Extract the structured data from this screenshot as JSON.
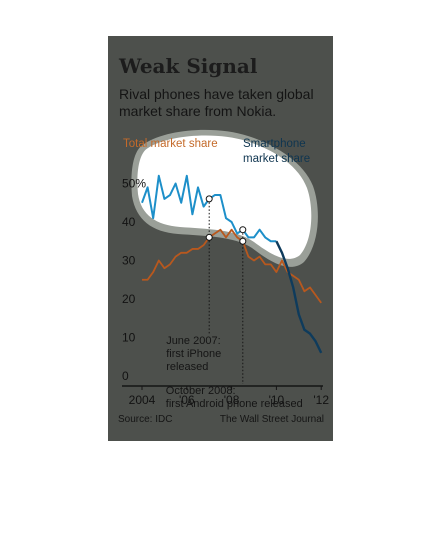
{
  "title": "Weak Signal",
  "subtitle": "Rival phones have taken global market share from Nokia.",
  "source": "Source: IDC",
  "credit": "The Wall Street Journal",
  "colors": {
    "total": "#b8581e",
    "smartphone": "#1d8fc9",
    "smartphone_late": "#0e3b5c",
    "background": "#4d504c",
    "highlight": "#ffffff"
  },
  "chart_data": {
    "type": "line",
    "xlim": [
      2004,
      2012.4
    ],
    "ylim": [
      0,
      55
    ],
    "x_ticks": [
      {
        "value": 2004,
        "label": "2004"
      },
      {
        "value": 2006,
        "label": "'06"
      },
      {
        "value": 2008,
        "label": "'08"
      },
      {
        "value": 2010,
        "label": "'10"
      },
      {
        "value": 2012,
        "label": "'12"
      }
    ],
    "y_ticks": [
      {
        "value": 0,
        "label": "0"
      },
      {
        "value": 10,
        "label": "10"
      },
      {
        "value": 20,
        "label": "20"
      },
      {
        "value": 30,
        "label": "30"
      },
      {
        "value": 40,
        "label": "40"
      },
      {
        "value": 50,
        "label": "50%"
      }
    ],
    "series": [
      {
        "name": "Total market share",
        "key": "total",
        "x": [
          2004,
          2004.25,
          2004.5,
          2004.75,
          2005,
          2005.25,
          2005.5,
          2005.75,
          2006,
          2006.25,
          2006.5,
          2006.75,
          2007,
          2007.25,
          2007.5,
          2007.75,
          2008,
          2008.25,
          2008.5,
          2008.75,
          2009,
          2009.25,
          2009.5,
          2009.75,
          2010,
          2010.25,
          2010.5,
          2010.75,
          2011,
          2011.25,
          2011.5,
          2011.75,
          2012
        ],
        "values": [
          25,
          25,
          27,
          30,
          28,
          29,
          31,
          32,
          32,
          33,
          33,
          34,
          36,
          37,
          38,
          36,
          38,
          36,
          35,
          31,
          30,
          31,
          29,
          29,
          27,
          30,
          27,
          26,
          25,
          22,
          23,
          21,
          19
        ]
      },
      {
        "name": "Smartphone market share",
        "key": "smartphone",
        "x": [
          2004,
          2004.25,
          2004.5,
          2004.75,
          2005,
          2005.25,
          2005.5,
          2005.75,
          2006,
          2006.25,
          2006.5,
          2006.75,
          2007,
          2007.25,
          2007.5,
          2007.75,
          2008,
          2008.25,
          2008.5,
          2008.75,
          2009,
          2009.25,
          2009.5,
          2009.75,
          2010,
          2010.25,
          2010.5,
          2010.75,
          2011,
          2011.25,
          2011.5,
          2011.75,
          2012
        ],
        "values": [
          45,
          49,
          41,
          52,
          46,
          47,
          50,
          45,
          52,
          42,
          49,
          44,
          46,
          47,
          47,
          41,
          40,
          37,
          38,
          36,
          36,
          38,
          36,
          35,
          35,
          32,
          28,
          23,
          16,
          12,
          11,
          9,
          6
        ]
      }
    ],
    "annotations": [
      {
        "x": 2007,
        "lines": [
          "June 2007:",
          "first iPhone",
          "released"
        ]
      },
      {
        "x": 2008.5,
        "lines": [
          "October 2008:",
          "first Android phone released"
        ]
      }
    ]
  }
}
